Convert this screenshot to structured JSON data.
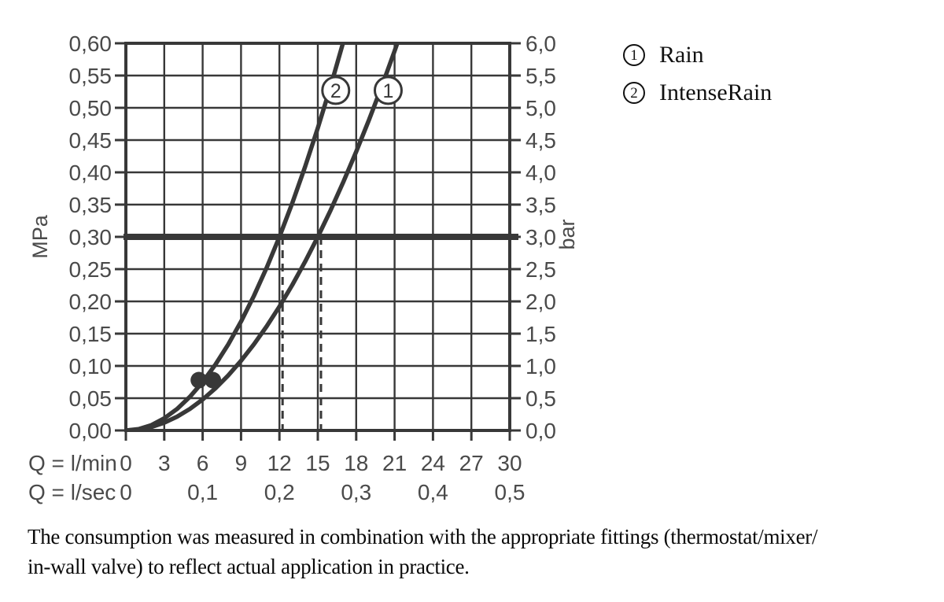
{
  "chart_data": {
    "type": "line",
    "title": "",
    "x_range": [
      0,
      30
    ],
    "x_grid_step": 3,
    "y_range": [
      0,
      0.6
    ],
    "y_grid_step": 0.05,
    "x_axis_rows": [
      {
        "label": "Q = l/min",
        "ticks": [
          {
            "v": 0,
            "label": "0"
          },
          {
            "v": 3,
            "label": "3"
          },
          {
            "v": 6,
            "label": "6"
          },
          {
            "v": 9,
            "label": "9"
          },
          {
            "v": 12,
            "label": "12"
          },
          {
            "v": 15,
            "label": "15"
          },
          {
            "v": 18,
            "label": "18"
          },
          {
            "v": 21,
            "label": "21"
          },
          {
            "v": 24,
            "label": "24"
          },
          {
            "v": 27,
            "label": "27"
          },
          {
            "v": 30,
            "label": "30"
          }
        ]
      },
      {
        "label": "Q = l/sec",
        "ticks": [
          {
            "v": 0,
            "label": "0"
          },
          {
            "v": 6,
            "label": "0,1"
          },
          {
            "v": 12,
            "label": "0,2"
          },
          {
            "v": 18,
            "label": "0,3"
          },
          {
            "v": 24,
            "label": "0,4"
          },
          {
            "v": 30,
            "label": "0,5"
          }
        ]
      }
    ],
    "y_axis_left": {
      "unit": "MPa",
      "ticks": [
        {
          "v": 0.6,
          "label": "0,60"
        },
        {
          "v": 0.55,
          "label": "0,55"
        },
        {
          "v": 0.5,
          "label": "0,50"
        },
        {
          "v": 0.45,
          "label": "0,45"
        },
        {
          "v": 0.4,
          "label": "0,40"
        },
        {
          "v": 0.35,
          "label": "0,35"
        },
        {
          "v": 0.3,
          "label": "0,30"
        },
        {
          "v": 0.25,
          "label": "0,25"
        },
        {
          "v": 0.2,
          "label": "0,20"
        },
        {
          "v": 0.15,
          "label": "0,15"
        },
        {
          "v": 0.1,
          "label": "0,10"
        },
        {
          "v": 0.05,
          "label": "0,05"
        },
        {
          "v": 0.0,
          "label": "0,00"
        }
      ]
    },
    "y_axis_right": {
      "unit": "bar",
      "ticks": [
        {
          "v": 0.6,
          "label": "6,0"
        },
        {
          "v": 0.55,
          "label": "5,5"
        },
        {
          "v": 0.5,
          "label": "5,0"
        },
        {
          "v": 0.45,
          "label": "4,5"
        },
        {
          "v": 0.4,
          "label": "4,0"
        },
        {
          "v": 0.35,
          "label": "3,5"
        },
        {
          "v": 0.3,
          "label": "3,0"
        },
        {
          "v": 0.25,
          "label": "2,5"
        },
        {
          "v": 0.2,
          "label": "2,0"
        },
        {
          "v": 0.15,
          "label": "1,5"
        },
        {
          "v": 0.1,
          "label": "1,0"
        },
        {
          "v": 0.05,
          "label": "0,5"
        },
        {
          "v": 0.0,
          "label": "0,0"
        }
      ]
    },
    "reference_pressure_line": {
      "p_mpa": 0.3,
      "p_bar": 3.0
    },
    "guide_lines_q_l_min": [
      12,
      15
    ],
    "series": [
      {
        "id": "1",
        "name": "Rain",
        "flow_at_3_bar_l_min": 15,
        "label_pos": {
          "q": 20.5,
          "p": 0.527
        },
        "points": [
          [
            0,
            0
          ],
          [
            1,
            0.0013
          ],
          [
            2,
            0.0053
          ],
          [
            3,
            0.012
          ],
          [
            4,
            0.0213
          ],
          [
            5,
            0.0333
          ],
          [
            6,
            0.048
          ],
          [
            7,
            0.0653
          ],
          [
            8,
            0.0853
          ],
          [
            9,
            0.108
          ],
          [
            10,
            0.1333
          ],
          [
            11,
            0.1613
          ],
          [
            12,
            0.192
          ],
          [
            13,
            0.2253
          ],
          [
            14,
            0.2613
          ],
          [
            15,
            0.3
          ],
          [
            16,
            0.3413
          ],
          [
            17,
            0.3853
          ],
          [
            18,
            0.432
          ],
          [
            19,
            0.4813
          ],
          [
            20,
            0.5333
          ],
          [
            21,
            0.588
          ],
          [
            21.5,
            0.6165
          ]
        ]
      },
      {
        "id": "2",
        "name": "IntenseRain",
        "flow_at_3_bar_l_min": 12,
        "label_pos": {
          "q": 16.4,
          "p": 0.527
        },
        "points": [
          [
            0,
            0
          ],
          [
            1,
            0.0021
          ],
          [
            2,
            0.0083
          ],
          [
            3,
            0.0188
          ],
          [
            4,
            0.0333
          ],
          [
            5,
            0.0521
          ],
          [
            6,
            0.075
          ],
          [
            7,
            0.1021
          ],
          [
            8,
            0.1333
          ],
          [
            9,
            0.1688
          ],
          [
            10,
            0.2083
          ],
          [
            11,
            0.2521
          ],
          [
            12,
            0.3
          ],
          [
            13,
            0.3521
          ],
          [
            14,
            0.4083
          ],
          [
            15,
            0.4688
          ],
          [
            16,
            0.5333
          ],
          [
            17.3,
            0.6234
          ]
        ]
      }
    ],
    "measured_points": [
      {
        "q": 5.7,
        "p": 0.078
      },
      {
        "q": 6.8,
        "p": 0.078
      }
    ],
    "colors": {
      "line": "#383838",
      "tick_text": "#4a4a4a",
      "text": "#111111",
      "background": "#ffffff"
    },
    "legend_position": "right-top",
    "grid": true
  },
  "legend": {
    "items": [
      {
        "marker": "1",
        "label": "Rain"
      },
      {
        "marker": "2",
        "label": "IntenseRain"
      }
    ]
  },
  "caption": {
    "lines": [
      "The consumption was measured in combination with the appropriate fittings (thermostat/mixer/",
      "in-wall valve) to reflect actual application in practice."
    ]
  }
}
